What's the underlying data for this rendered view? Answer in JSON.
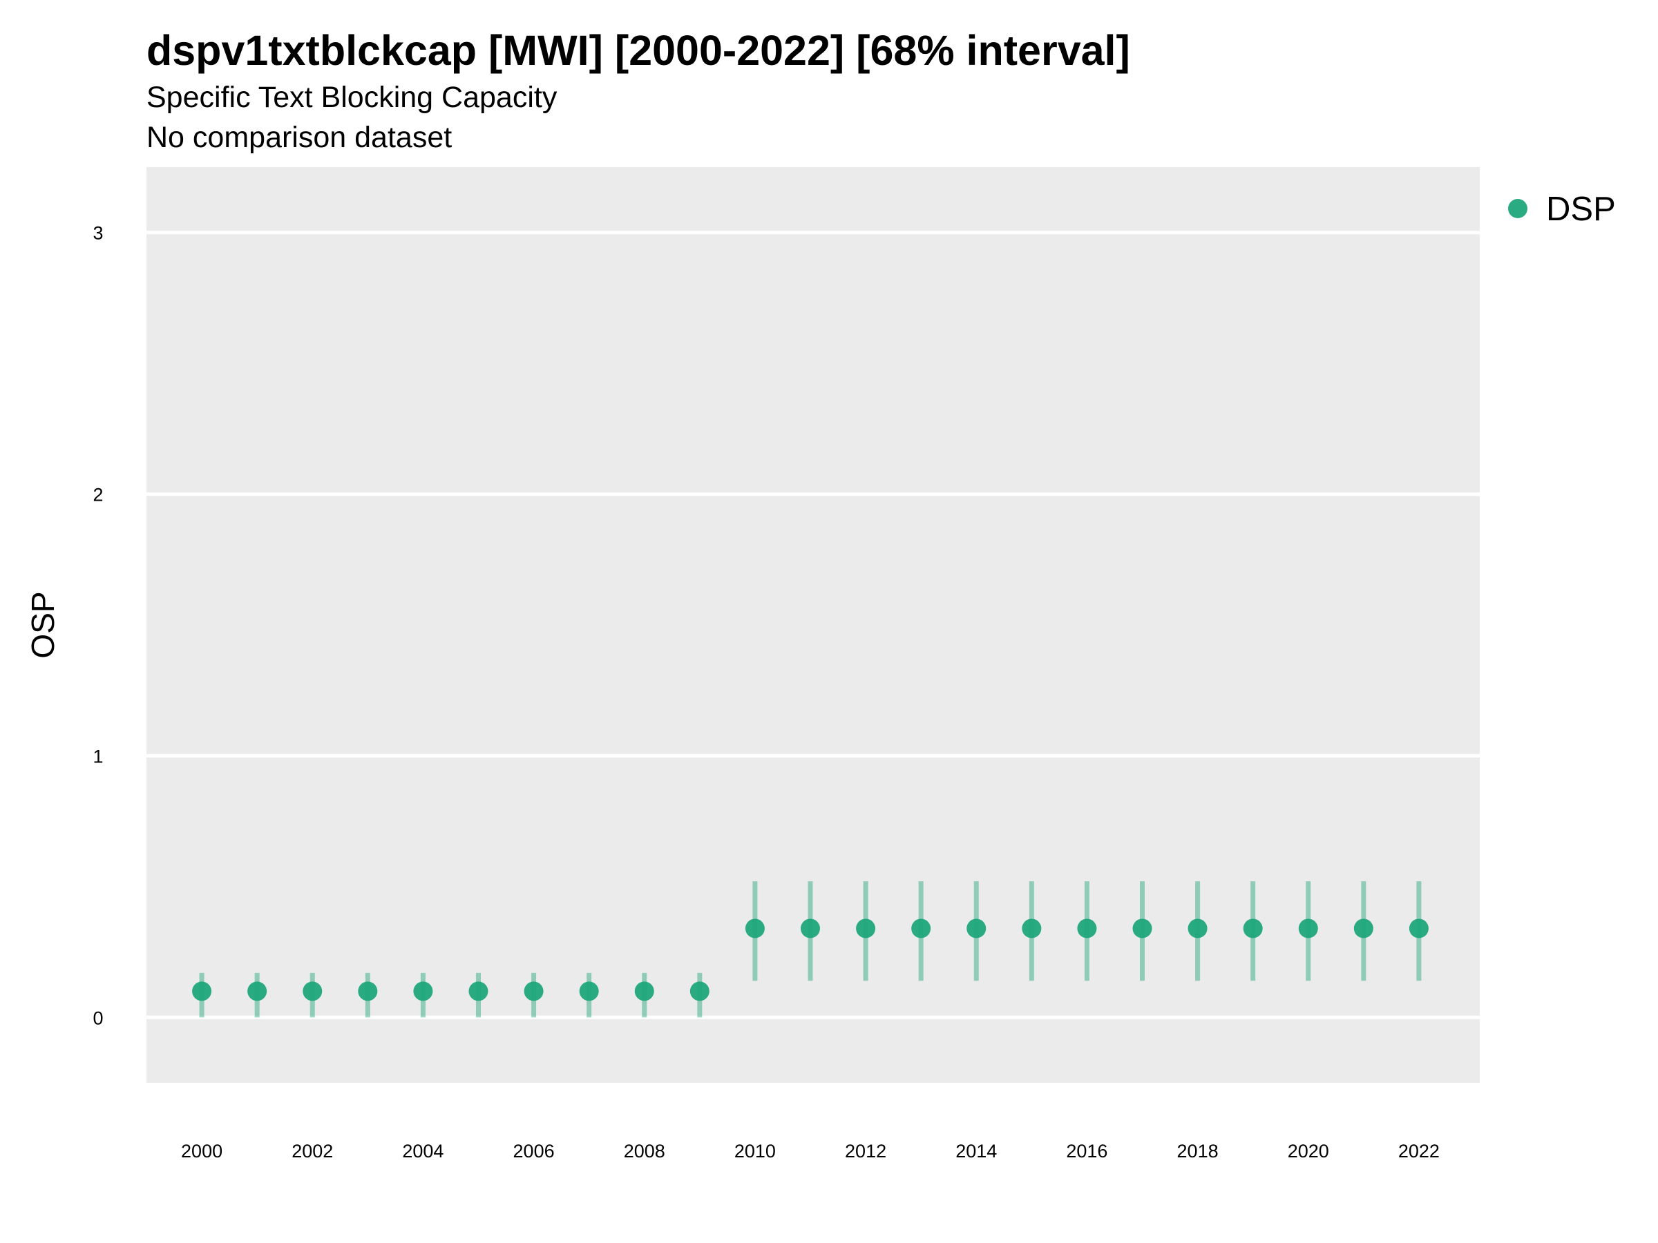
{
  "chart_data": {
    "type": "scatter",
    "title": "dspv1txtblckcap [MWI] [2000-2022] [68% interval]",
    "subtitle": "Specific Text Blocking Capacity",
    "caption": "No comparison dataset",
    "xlabel": "",
    "ylabel": "OSP",
    "xlim": [
      1999,
      2023.1
    ],
    "ylim": [
      -0.25,
      3.25
    ],
    "xticks": [
      2000,
      2002,
      2004,
      2006,
      2008,
      2010,
      2012,
      2014,
      2016,
      2018,
      2020,
      2022
    ],
    "yticks": [
      0,
      1,
      2,
      3
    ],
    "grid": true,
    "legend_position": "right",
    "series": [
      {
        "name": "DSP",
        "color": "#1fa67a",
        "points": [
          {
            "x": 2000,
            "y": 0.1,
            "low": 0.0,
            "high": 0.17
          },
          {
            "x": 2001,
            "y": 0.1,
            "low": 0.0,
            "high": 0.17
          },
          {
            "x": 2002,
            "y": 0.1,
            "low": 0.0,
            "high": 0.17
          },
          {
            "x": 2003,
            "y": 0.1,
            "low": 0.0,
            "high": 0.17
          },
          {
            "x": 2004,
            "y": 0.1,
            "low": 0.0,
            "high": 0.17
          },
          {
            "x": 2005,
            "y": 0.1,
            "low": 0.0,
            "high": 0.17
          },
          {
            "x": 2006,
            "y": 0.1,
            "low": 0.0,
            "high": 0.17
          },
          {
            "x": 2007,
            "y": 0.1,
            "low": 0.0,
            "high": 0.17
          },
          {
            "x": 2008,
            "y": 0.1,
            "low": 0.0,
            "high": 0.17
          },
          {
            "x": 2009,
            "y": 0.1,
            "low": 0.0,
            "high": 0.17
          },
          {
            "x": 2010,
            "y": 0.34,
            "low": 0.14,
            "high": 0.52
          },
          {
            "x": 2011,
            "y": 0.34,
            "low": 0.14,
            "high": 0.52
          },
          {
            "x": 2012,
            "y": 0.34,
            "low": 0.14,
            "high": 0.52
          },
          {
            "x": 2013,
            "y": 0.34,
            "low": 0.14,
            "high": 0.52
          },
          {
            "x": 2014,
            "y": 0.34,
            "low": 0.14,
            "high": 0.52
          },
          {
            "x": 2015,
            "y": 0.34,
            "low": 0.14,
            "high": 0.52
          },
          {
            "x": 2016,
            "y": 0.34,
            "low": 0.14,
            "high": 0.52
          },
          {
            "x": 2017,
            "y": 0.34,
            "low": 0.14,
            "high": 0.52
          },
          {
            "x": 2018,
            "y": 0.34,
            "low": 0.14,
            "high": 0.52
          },
          {
            "x": 2019,
            "y": 0.34,
            "low": 0.14,
            "high": 0.52
          },
          {
            "x": 2020,
            "y": 0.34,
            "low": 0.14,
            "high": 0.52
          },
          {
            "x": 2021,
            "y": 0.34,
            "low": 0.14,
            "high": 0.52
          },
          {
            "x": 2022,
            "y": 0.34,
            "low": 0.14,
            "high": 0.52
          }
        ]
      }
    ]
  }
}
